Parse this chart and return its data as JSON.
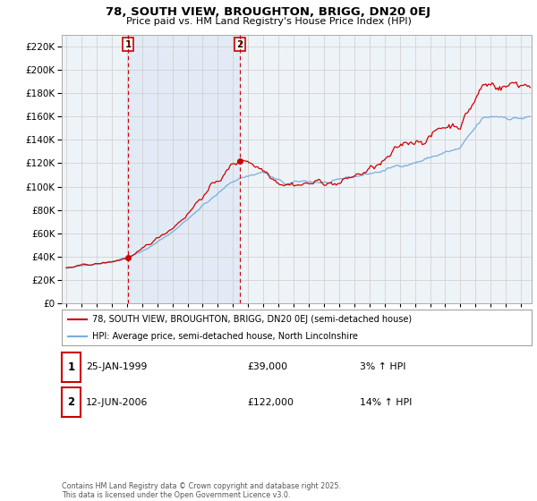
{
  "title": "78, SOUTH VIEW, BROUGHTON, BRIGG, DN20 0EJ",
  "subtitle": "Price paid vs. HM Land Registry's House Price Index (HPI)",
  "legend_line1": "78, SOUTH VIEW, BROUGHTON, BRIGG, DN20 0EJ (semi-detached house)",
  "legend_line2": "HPI: Average price, semi-detached house, North Lincolnshire",
  "ann1_label": "1",
  "ann1_date": "25-JAN-1999",
  "ann1_price": "£39,000",
  "ann1_hpi": "3% ↑ HPI",
  "ann2_label": "2",
  "ann2_date": "12-JUN-2006",
  "ann2_price": "£122,000",
  "ann2_hpi": "14% ↑ HPI",
  "copyright_text": "Contains HM Land Registry data © Crown copyright and database right 2025.\nThis data is licensed under the Open Government Licence v3.0.",
  "house_color": "#cc0000",
  "hpi_color": "#7aaddc",
  "shade_color": "#ddeeff",
  "vline_color": "#cc0000",
  "background_color": "#f0f4f8",
  "plot_bg_color": "#f0f4f8",
  "grid_color": "#cccccc",
  "ylim": [
    0,
    230000
  ],
  "yticks": [
    0,
    20000,
    40000,
    60000,
    80000,
    100000,
    120000,
    140000,
    160000,
    180000,
    200000,
    220000
  ],
  "sale1_x": 1999.07,
  "sale1_y": 39000,
  "sale2_x": 2006.45,
  "sale2_y": 122000,
  "xmin": 1994.7,
  "xmax": 2025.7
}
